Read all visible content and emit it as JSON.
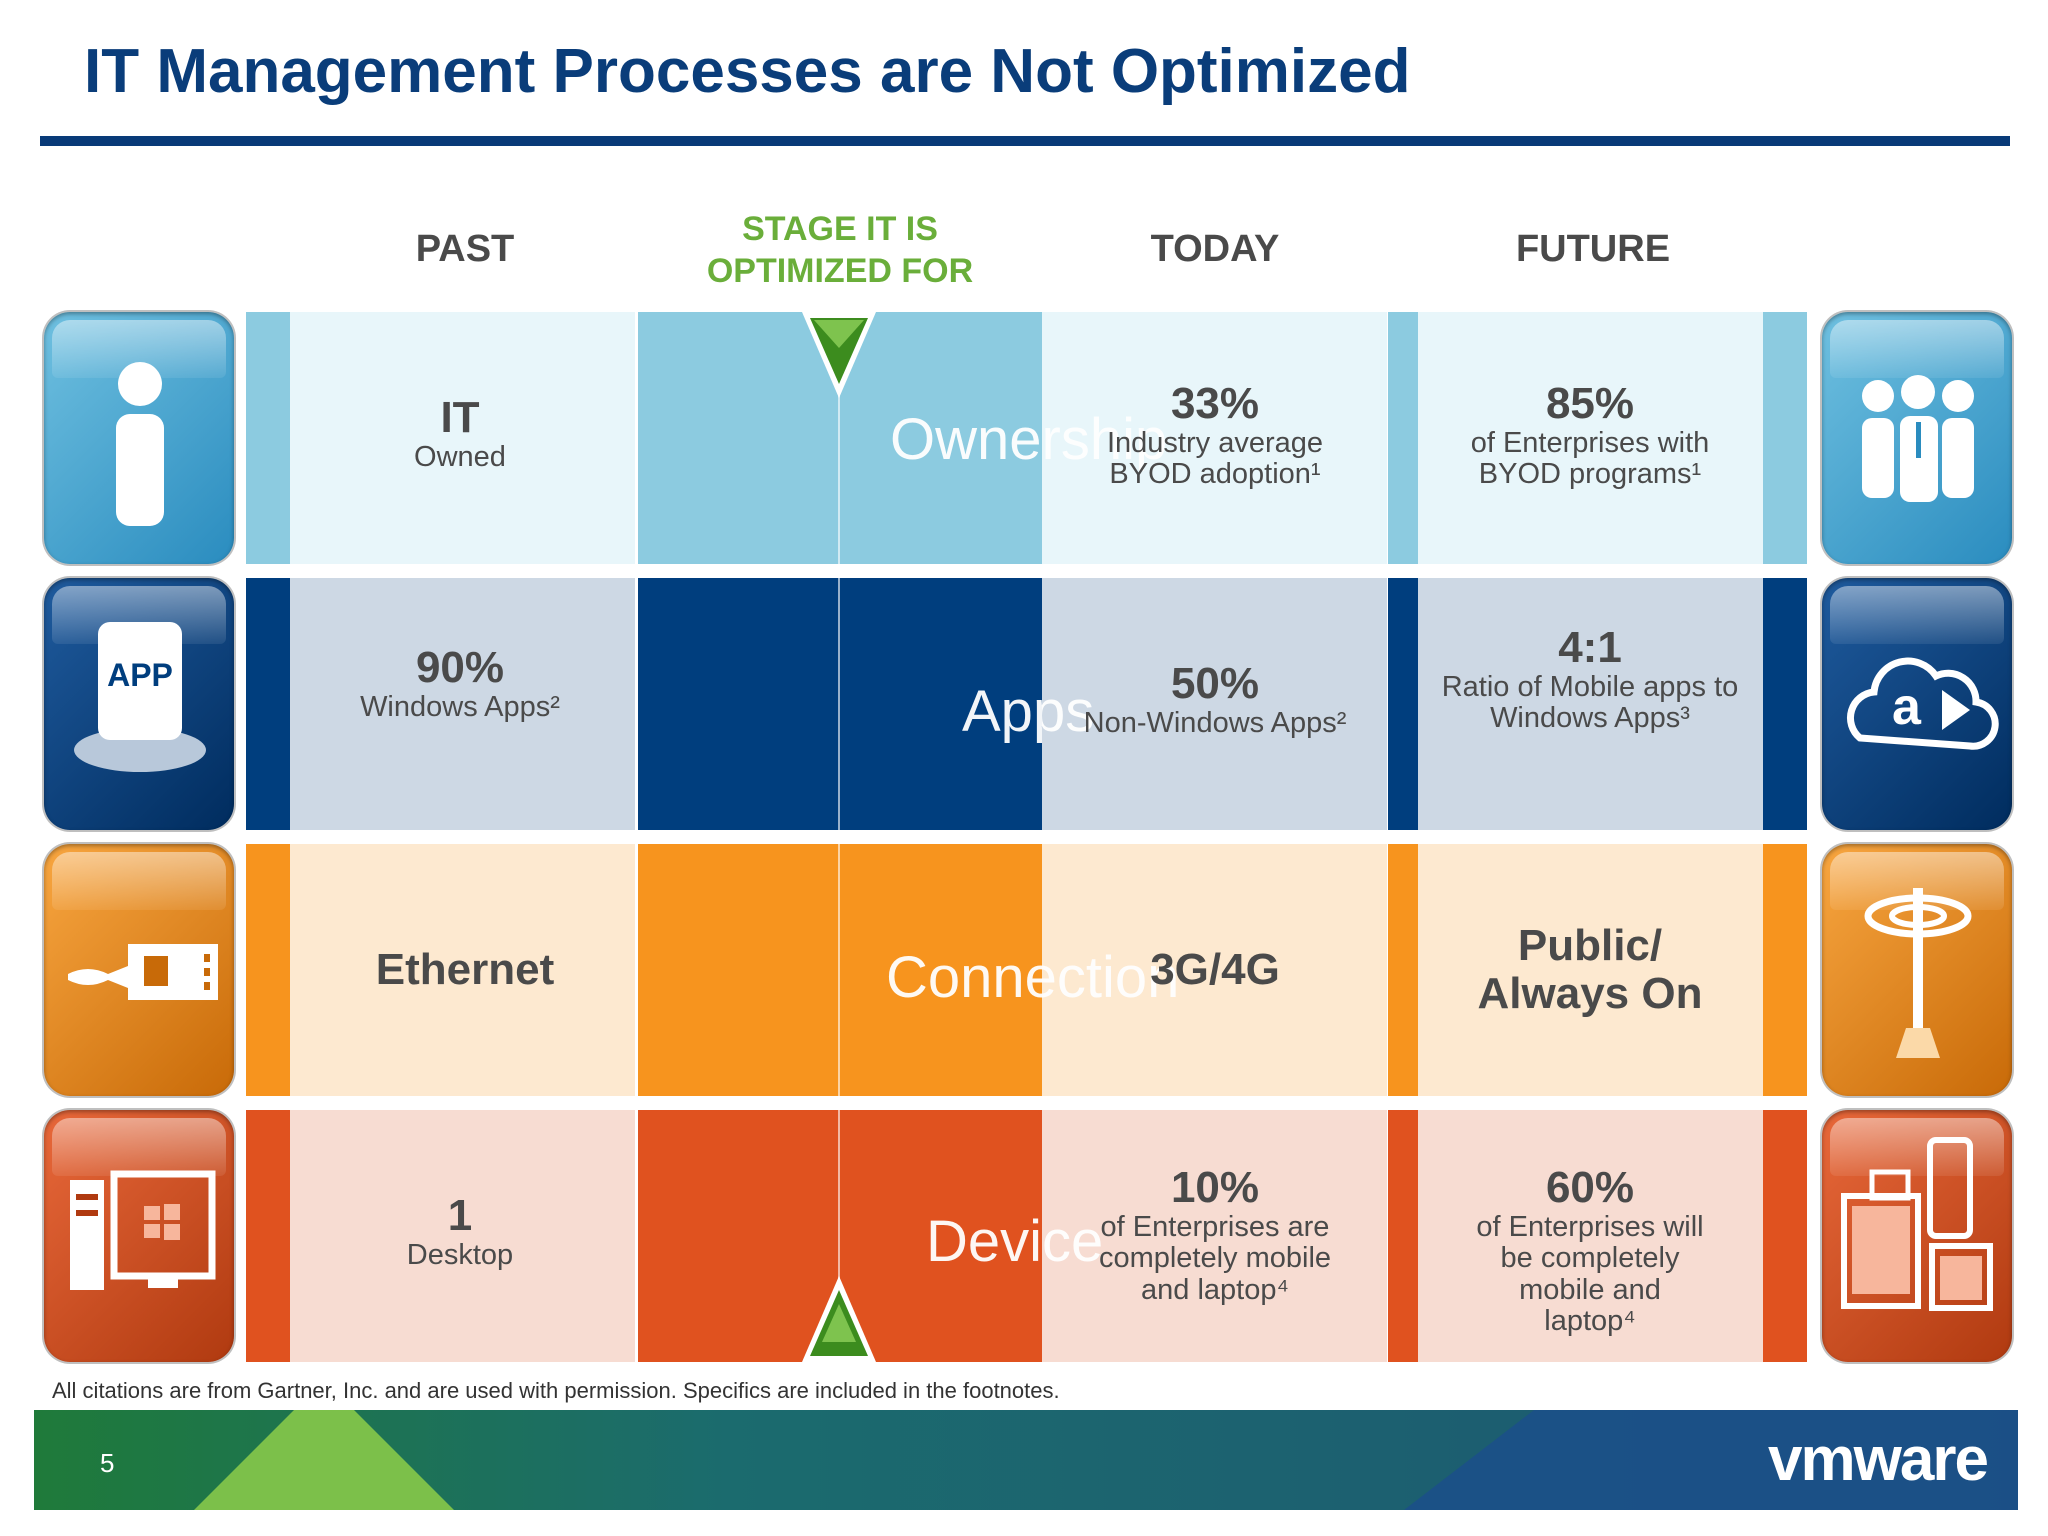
{
  "title": "IT Management Processes are Not Optimized",
  "columns": {
    "past": "PAST",
    "stage_line1": "STAGE IT IS",
    "stage_line2": "OPTIMIZED FOR",
    "today": "TODAY",
    "future": "FUTURE"
  },
  "colors": {
    "title": "#0a3d7a",
    "stage": "#6aae3a",
    "ownership": "#8ccbe0",
    "apps": "#003e7e",
    "connection": "#f7941e",
    "device": "#e0521f"
  },
  "rows": [
    {
      "key": "ownership",
      "label": "Ownership",
      "left_icon": "person-icon",
      "right_icon": "group-with-devices-icon",
      "past_big": "IT",
      "past_small": "Owned",
      "today_big": "33%",
      "today_small": "Industry average BYOD adoption¹",
      "future_big": "85%",
      "future_small": "of Enterprises with BYOD programs¹"
    },
    {
      "key": "apps",
      "label": "Apps",
      "left_icon": "app-icon",
      "left_icon_text": "APP",
      "right_icon": "cloud-app-stores-icon",
      "past_big": "90%",
      "past_small": "Windows Apps²",
      "today_big": "50%",
      "today_small": "Non-Windows Apps²",
      "future_big": "4:1",
      "future_small": "Ratio of Mobile apps to Windows Apps³"
    },
    {
      "key": "connection",
      "label": "Connection",
      "left_icon": "ethernet-cable-icon",
      "right_icon": "wireless-tower-icon",
      "past_big": "Ethernet",
      "past_small": "",
      "today_big": "3G/4G",
      "today_small": "",
      "future_big": "Public/ Always On",
      "future_small": ""
    },
    {
      "key": "device",
      "label": "Device",
      "left_icon": "desktop-computer-icon",
      "right_icon": "mobile-devices-icon",
      "past_big": "1",
      "past_small": "Desktop",
      "today_big": "10%",
      "today_small": "of Enterprises are completely mobile and laptop⁴",
      "future_big": "60%",
      "future_small": "of Enterprises will be completely mobile and laptop⁴"
    }
  ],
  "footnote": "All citations are from Gartner, Inc. and are used with permission. Specifics are included in the footnotes.",
  "page_number": "5",
  "logo": "vmware"
}
